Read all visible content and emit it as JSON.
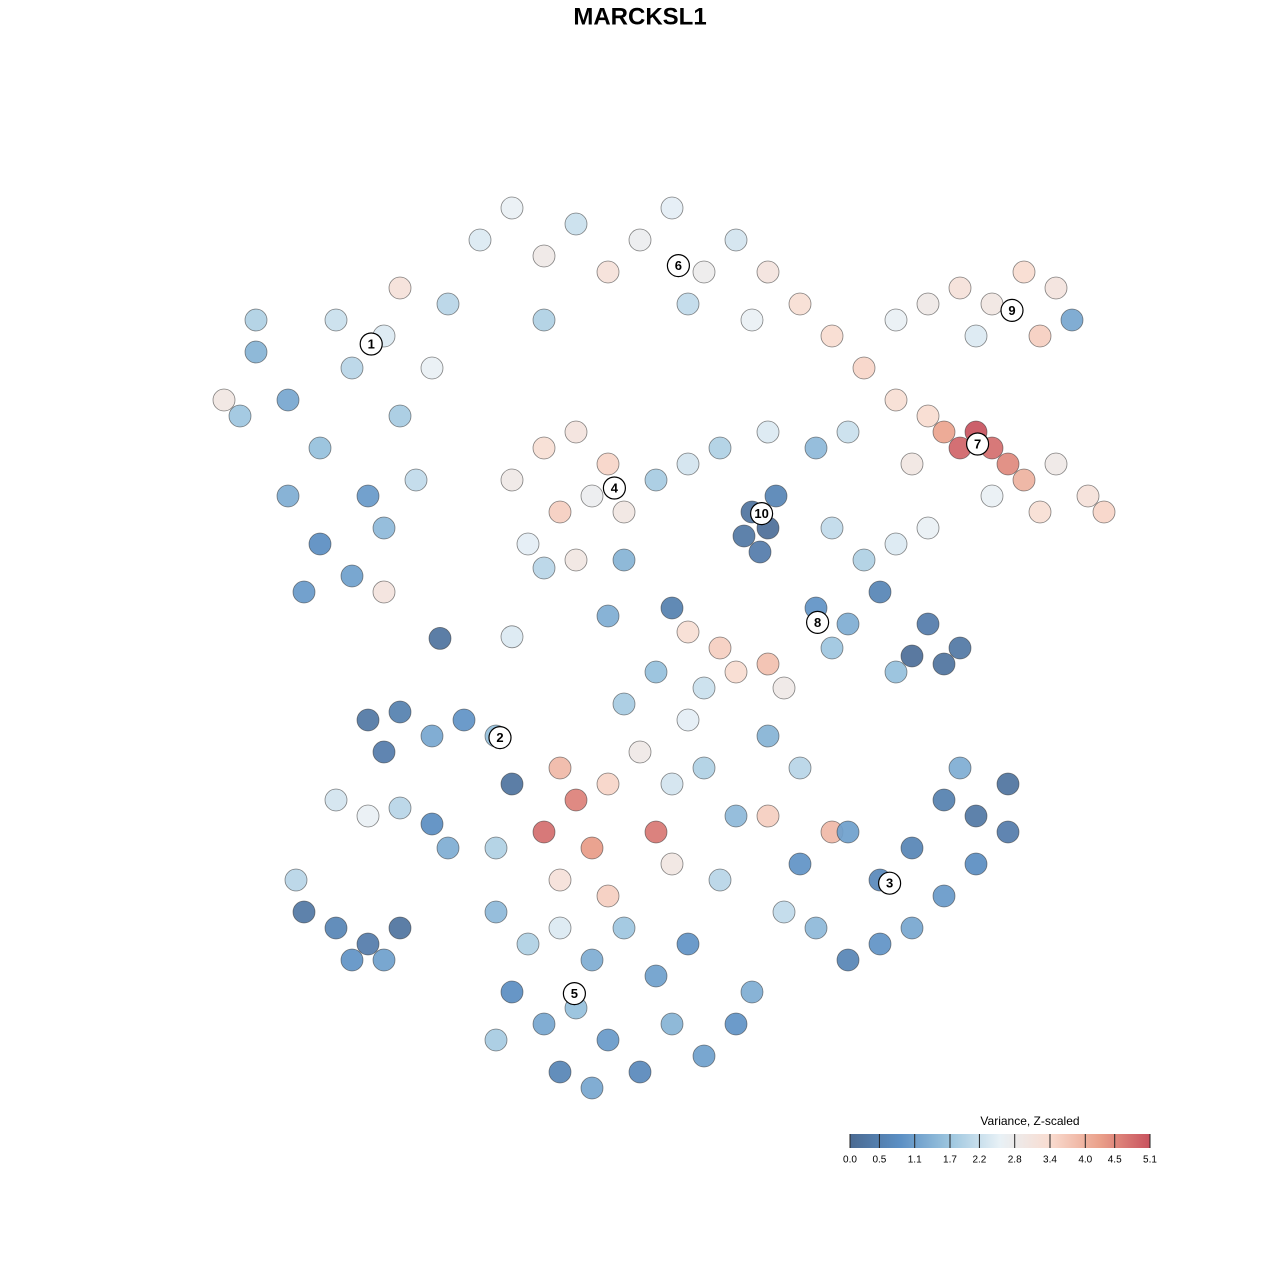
{
  "chart_data": {
    "type": "scatter",
    "title": "MARCKSL1",
    "xlim": [
      -40,
      40
    ],
    "ylim": [
      -40,
      40
    ],
    "x": [
      -24,
      -22,
      -20,
      -18,
      -16,
      -15,
      -17,
      -20,
      -18,
      -16,
      -14,
      -22,
      -25,
      -13,
      -15,
      -26,
      -24,
      -19,
      -21,
      -16,
      -10,
      -8,
      -6,
      -4,
      -2,
      0,
      2,
      4,
      6,
      8,
      10,
      -12,
      -6,
      3,
      7,
      12,
      14,
      16,
      16,
      18,
      20,
      22,
      24,
      26,
      27,
      21,
      25,
      18,
      19,
      20,
      21,
      22,
      23,
      24,
      26,
      28,
      29,
      17,
      25,
      22,
      -8,
      -6,
      -4,
      -2,
      -1,
      -3,
      -5,
      -7,
      -4,
      -1,
      -6,
      1,
      3,
      5,
      8,
      11,
      13,
      7,
      8,
      7.5,
      8.5,
      6.5,
      11,
      13,
      15,
      17,
      19,
      20,
      18,
      16,
      12,
      14,
      16,
      18,
      12,
      3,
      5,
      6,
      8,
      9,
      4,
      1,
      -17,
      -15,
      -13,
      -11,
      -9,
      -8,
      -16,
      -19,
      -17,
      -15,
      -13,
      -12,
      -9,
      -5,
      -4,
      -6,
      -3,
      -2,
      0,
      2,
      4,
      1,
      2,
      -2,
      -5,
      6,
      8,
      10,
      8,
      12,
      5,
      -1,
      3,
      10,
      13,
      15,
      17,
      19,
      21,
      23,
      21,
      19,
      17,
      15,
      11,
      13,
      9,
      23,
      20,
      -9,
      -7,
      -5,
      -3,
      -1,
      1,
      3,
      -8,
      -6,
      -4,
      -2,
      0,
      2,
      4,
      6,
      7,
      -5,
      -9,
      -3,
      -21,
      -19,
      -17,
      -18,
      -15,
      -16,
      -21.5,
      -12.5,
      -8,
      2,
      -2
    ],
    "y": [
      18,
      15,
      12,
      17,
      19,
      14,
      9,
      6,
      4,
      7,
      10,
      9,
      14,
      17,
      22,
      15,
      20,
      20,
      3,
      3,
      25,
      27,
      24,
      26,
      23,
      25,
      27,
      23,
      25,
      23,
      21,
      21,
      20,
      21,
      20,
      19,
      17,
      15,
      20,
      21,
      22,
      21,
      23,
      22,
      20,
      19,
      19,
      14,
      13,
      12,
      13,
      12,
      11,
      10,
      11,
      9,
      8,
      11,
      8,
      9,
      10,
      12,
      13,
      11,
      8,
      9,
      8,
      6,
      5,
      5,
      4.5,
      10,
      11,
      12,
      13,
      12,
      13,
      8,
      7,
      5.5,
      9,
      6.5,
      2,
      1,
      3,
      -1,
      -1.5,
      -0.5,
      1,
      -2,
      -0.5,
      5,
      6,
      7,
      7,
      0.5,
      -0.5,
      -2,
      -1.5,
      -3,
      -3,
      -2,
      -5,
      -4.5,
      -6,
      -5,
      -6,
      -9,
      -7,
      -10,
      -11,
      -10.5,
      -11.5,
      -13,
      -13,
      -8,
      -10,
      -12,
      -13,
      -9,
      -7,
      -9,
      -8,
      -12,
      -14,
      -16,
      -15,
      -11,
      -6,
      -8,
      -11,
      -12,
      -15,
      -4,
      -5,
      -14,
      -12,
      -15,
      -13,
      -10,
      -11,
      -12,
      -14,
      -16,
      -18,
      -19,
      -18,
      -20,
      -17,
      -9,
      -8,
      -17,
      -19,
      -18,
      -20,
      -18,
      -21,
      -19,
      -22,
      -24,
      -23,
      -25,
      -27,
      -24,
      -26,
      -24,
      -22,
      -27,
      -25,
      -28,
      -17,
      -18,
      -19,
      -20,
      -18,
      -20,
      -15,
      0.1,
      0.2,
      2,
      1.5
    ],
    "values": [
      1.4,
      1.2,
      1.6,
      2.0,
      2.4,
      1.8,
      1.0,
      0.8,
      1.1,
      1.5,
      2.1,
      1.3,
      1.7,
      2.6,
      3.2,
      3.0,
      1.9,
      2.2,
      1.0,
      3.1,
      2.4,
      2.6,
      2.9,
      2.2,
      3.2,
      2.7,
      2.5,
      2.8,
      2.3,
      3.1,
      3.3,
      2.0,
      1.9,
      2.1,
      2.6,
      3.4,
      3.5,
      3.3,
      2.6,
      2.9,
      3.2,
      3.0,
      3.4,
      3.1,
      1.2,
      2.4,
      3.6,
      3.4,
      4.2,
      4.9,
      5.1,
      4.8,
      4.5,
      4.0,
      2.9,
      3.2,
      3.5,
      3.0,
      3.3,
      2.6,
      2.9,
      3.3,
      3.1,
      3.5,
      3.0,
      2.7,
      3.6,
      2.5,
      3.0,
      1.4,
      2.0,
      1.8,
      2.3,
      1.9,
      2.4,
      1.5,
      2.2,
      0.2,
      0.1,
      0.4,
      0.6,
      0.3,
      0.9,
      1.3,
      0.6,
      0.1,
      0.2,
      0.3,
      0.4,
      1.6,
      1.7,
      1.9,
      2.4,
      2.6,
      2.1,
      3.3,
      3.6,
      3.4,
      3.8,
      2.9,
      2.2,
      1.6,
      0.3,
      0.5,
      1.2,
      0.9,
      1.6,
      0.2,
      0.4,
      2.3,
      2.6,
      2.0,
      0.8,
      1.3,
      1.9,
      3.9,
      4.6,
      4.8,
      4.3,
      3.5,
      2.9,
      2.3,
      1.9,
      4.7,
      3.0,
      3.6,
      3.2,
      1.5,
      1.4,
      2.0,
      3.6,
      3.9,
      2.0,
      1.8,
      2.5,
      0.9,
      1.1,
      0.7,
      0.6,
      0.5,
      0.3,
      0.4,
      0.8,
      1.0,
      1.2,
      0.9,
      1.5,
      0.6,
      2.1,
      0.2,
      1.3,
      1.5,
      1.9,
      2.4,
      1.3,
      1.7,
      1.1,
      0.9,
      0.8,
      1.2,
      1.6,
      1.0,
      0.7,
      1.4,
      1.1,
      0.9,
      1.3,
      0.6,
      1.8,
      1.2,
      0.3,
      0.6,
      0.4,
      0.9,
      0.2,
      1.1,
      2.0,
      0.2,
      2.4,
      0.5,
      1.3
    ],
    "clusters": [
      {
        "label": "1",
        "x": -16.8,
        "y": 18.5
      },
      {
        "label": "2",
        "x": -8.75,
        "y": -6.1
      },
      {
        "label": "3",
        "x": 15.6,
        "y": -15.2
      },
      {
        "label": "4",
        "x": -1.6,
        "y": 9.5
      },
      {
        "label": "5",
        "x": -4.1,
        "y": -22.1
      },
      {
        "label": "6",
        "x": 2.4,
        "y": 23.4
      },
      {
        "label": "7",
        "x": 21.1,
        "y": 12.25
      },
      {
        "label": "8",
        "x": 11.1,
        "y": 1.1
      },
      {
        "label": "9",
        "x": 23.25,
        "y": 20.6
      },
      {
        "label": "10",
        "x": 7.6,
        "y": 7.9
      }
    ],
    "colorscale": {
      "title": "Variance, Z-scaled",
      "colors": [
        "#4a6a92",
        "#5b8fc4",
        "#9dc6df",
        "#e8f1f6",
        "#f9dcd0",
        "#eaa08a",
        "#c8525e"
      ],
      "lim": [
        0,
        5.1
      ],
      "ticks": [
        {
          "value": 0,
          "label": "0.0"
        },
        0.5,
        1.1,
        1.7,
        2.2,
        2.8,
        3.4,
        {
          "value": 4,
          "label": "4.0"
        },
        4.5,
        5.1
      ]
    }
  }
}
